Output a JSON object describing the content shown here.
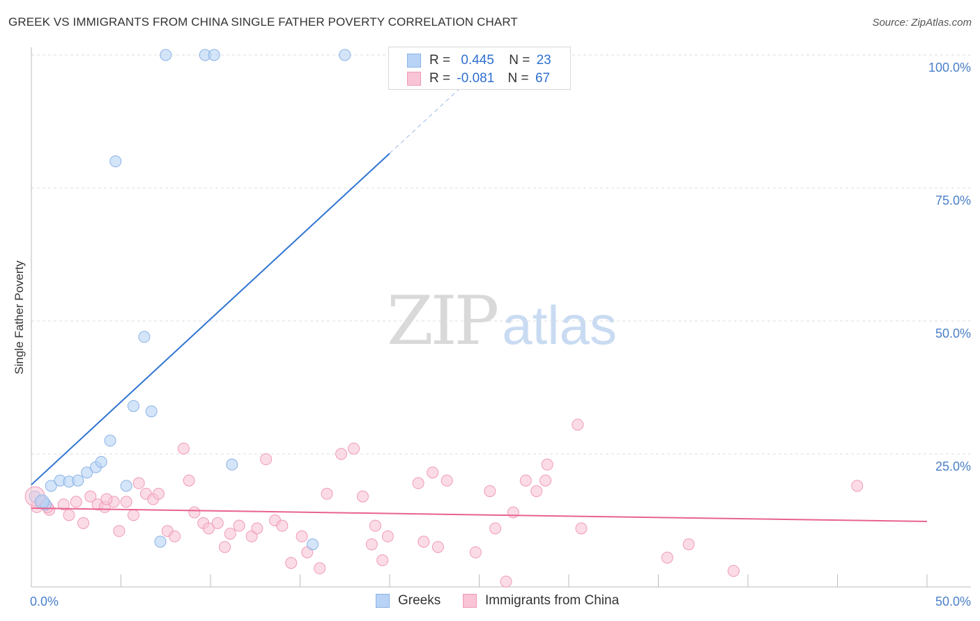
{
  "header": {
    "title": "GREEK VS IMMIGRANTS FROM CHINA SINGLE FATHER POVERTY CORRELATION CHART",
    "source": "Source: ZipAtlas.com"
  },
  "watermark": {
    "zip": "ZIP",
    "atlas": "atlas"
  },
  "legend": {
    "greeks": {
      "r_label": "R =",
      "r_value": "0.445",
      "n_label": "N =",
      "n_value": "23"
    },
    "china": {
      "r_label": "R =",
      "r_value": "-0.081",
      "n_label": "N =",
      "n_value": "67"
    }
  },
  "bottom_legend": {
    "greeks": "Greeks",
    "china": "Immigrants from China"
  },
  "colors": {
    "greeks_fill": "#b8d3f5",
    "greeks_stroke": "#8ab2e6",
    "greeks_line": "#2f74d0",
    "china_fill": "#f8c4d6",
    "china_stroke": "#ef9ab8",
    "china_line": "#e8628f",
    "grid": "#dddddd",
    "axis_text": "#4a7fc9"
  },
  "chart_data": {
    "type": "scatter",
    "title": "GREEK VS IMMIGRANTS FROM CHINA SINGLE FATHER POVERTY CORRELATION CHART",
    "xlabel": "",
    "ylabel": "Single Father Poverty",
    "xlim": [
      0,
      50
    ],
    "ylim": [
      0,
      100
    ],
    "x_tick_labels": [
      "0.0%",
      "50.0%"
    ],
    "y_ticks": [
      25,
      50,
      75,
      100
    ],
    "y_tick_labels": [
      "25.0%",
      "50.0%",
      "75.0%",
      "100.0%"
    ],
    "grid": true,
    "legend_position": "top-center",
    "series": [
      {
        "name": "Greeks",
        "points": [
          [
            0.2,
            17.0
          ],
          [
            0.6,
            16.0
          ],
          [
            0.8,
            15.5
          ],
          [
            1.1,
            19.0
          ],
          [
            1.6,
            20.0
          ],
          [
            2.1,
            19.8
          ],
          [
            2.6,
            20.0
          ],
          [
            3.1,
            21.5
          ],
          [
            3.6,
            22.5
          ],
          [
            3.9,
            23.5
          ],
          [
            4.4,
            27.5
          ],
          [
            4.7,
            80.0
          ],
          [
            5.3,
            19.0
          ],
          [
            5.7,
            34.0
          ],
          [
            6.3,
            47.0
          ],
          [
            6.7,
            33.0
          ],
          [
            7.2,
            8.5
          ],
          [
            7.5,
            100.0
          ],
          [
            9.7,
            100.0
          ],
          [
            10.2,
            100.0
          ],
          [
            11.2,
            23.0
          ],
          [
            15.7,
            8.0
          ],
          [
            17.5,
            100.0
          ]
        ],
        "trend": {
          "x": [
            0,
            20
          ],
          "y": [
            19.2,
            81.5
          ],
          "dashed_to_x": 25.7
        }
      },
      {
        "name": "Immigrants from China",
        "points": [
          [
            0.3,
            15.0
          ],
          [
            1.0,
            14.5
          ],
          [
            1.8,
            15.5
          ],
          [
            2.1,
            13.5
          ],
          [
            2.5,
            16.0
          ],
          [
            2.9,
            12.0
          ],
          [
            3.3,
            17.0
          ],
          [
            3.7,
            15.5
          ],
          [
            4.1,
            15.0
          ],
          [
            4.6,
            16.0
          ],
          [
            4.9,
            10.5
          ],
          [
            5.3,
            16.0
          ],
          [
            5.7,
            13.5
          ],
          [
            6.0,
            19.5
          ],
          [
            6.4,
            17.5
          ],
          [
            6.8,
            16.5
          ],
          [
            7.1,
            17.5
          ],
          [
            7.6,
            10.5
          ],
          [
            8.0,
            9.5
          ],
          [
            8.5,
            26.0
          ],
          [
            8.8,
            20.0
          ],
          [
            9.1,
            14.0
          ],
          [
            9.6,
            12.0
          ],
          [
            9.9,
            11.0
          ],
          [
            10.4,
            12.0
          ],
          [
            10.8,
            7.5
          ],
          [
            11.1,
            10.0
          ],
          [
            11.6,
            11.5
          ],
          [
            12.3,
            9.5
          ],
          [
            12.6,
            11.0
          ],
          [
            13.1,
            24.0
          ],
          [
            13.6,
            12.5
          ],
          [
            14.0,
            11.5
          ],
          [
            14.5,
            4.5
          ],
          [
            15.1,
            9.5
          ],
          [
            15.4,
            6.5
          ],
          [
            16.1,
            3.5
          ],
          [
            16.5,
            17.5
          ],
          [
            17.3,
            25.0
          ],
          [
            18.0,
            26.0
          ],
          [
            18.5,
            17.0
          ],
          [
            19.0,
            8.0
          ],
          [
            19.2,
            11.5
          ],
          [
            19.6,
            5.0
          ],
          [
            19.9,
            9.5
          ],
          [
            21.6,
            19.5
          ],
          [
            21.9,
            8.5
          ],
          [
            22.4,
            21.5
          ],
          [
            22.7,
            7.5
          ],
          [
            23.2,
            20.0
          ],
          [
            24.8,
            6.5
          ],
          [
            25.6,
            18.0
          ],
          [
            25.9,
            11.0
          ],
          [
            26.5,
            1.0
          ],
          [
            26.9,
            14.0
          ],
          [
            27.6,
            20.0
          ],
          [
            28.2,
            18.0
          ],
          [
            28.7,
            20.0
          ],
          [
            28.8,
            23.0
          ],
          [
            30.5,
            30.5
          ],
          [
            30.7,
            11.0
          ],
          [
            35.5,
            5.5
          ],
          [
            36.7,
            8.0
          ],
          [
            39.2,
            3.0
          ],
          [
            46.1,
            19.0
          ],
          [
            0.9,
            15.0
          ],
          [
            4.2,
            16.5
          ]
        ],
        "trend": {
          "x": [
            0,
            50
          ],
          "y": [
            14.8,
            12.3
          ]
        }
      }
    ]
  }
}
